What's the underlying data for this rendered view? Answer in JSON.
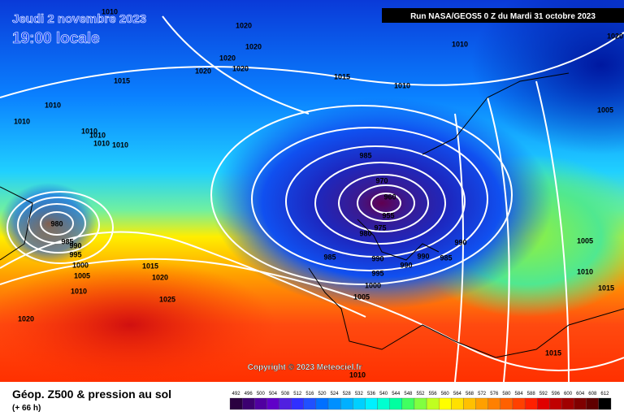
{
  "header": {
    "date": "Jeudi 2 novembre 2023",
    "time": "19:00 locale",
    "run": "Run NASA/GEOS5 0 Z du Mardi 31 octobre 2023"
  },
  "copyright": "Copyright © 2023 Meteociel.fr",
  "footer": {
    "title": "Géop. Z500 & pression au sol",
    "lead": "(+ 66 h)"
  },
  "isobar_labels": [
    1010,
    1020,
    1020,
    1020,
    1020,
    1020,
    1015,
    1010,
    1010,
    1010,
    1010,
    1010,
    1010,
    1015,
    1010,
    1010,
    1005,
    1020,
    985,
    970,
    960,
    955,
    975,
    980,
    980,
    985,
    990,
    995,
    1000,
    1005,
    1010,
    1015,
    1020,
    1025,
    1020,
    985,
    990,
    995,
    1000,
    1005,
    990,
    990,
    990,
    985,
    1005,
    1010,
    1015,
    1015,
    1010
  ],
  "legend": {
    "labels": [
      492,
      496,
      500,
      504,
      508,
      512,
      516,
      520,
      524,
      528,
      532,
      536,
      540,
      544,
      548,
      552,
      556,
      560,
      564,
      568,
      572,
      576,
      580,
      584,
      588,
      592,
      596,
      600,
      604,
      608,
      612
    ],
    "colors": [
      "#2a0040",
      "#3c0070",
      "#5000a0",
      "#6000c8",
      "#5020e0",
      "#3030ff",
      "#2050ff",
      "#0070ff",
      "#0090ff",
      "#00b0ff",
      "#00d0ff",
      "#00f0ff",
      "#00ffd0",
      "#00ffa0",
      "#40ff60",
      "#80ff40",
      "#c0ff20",
      "#ffff00",
      "#ffe000",
      "#ffc000",
      "#ffa000",
      "#ff8000",
      "#ff6000",
      "#ff4000",
      "#ff2000",
      "#e00000",
      "#c00000",
      "#a00000",
      "#800000",
      "#600000",
      "#000000"
    ]
  }
}
